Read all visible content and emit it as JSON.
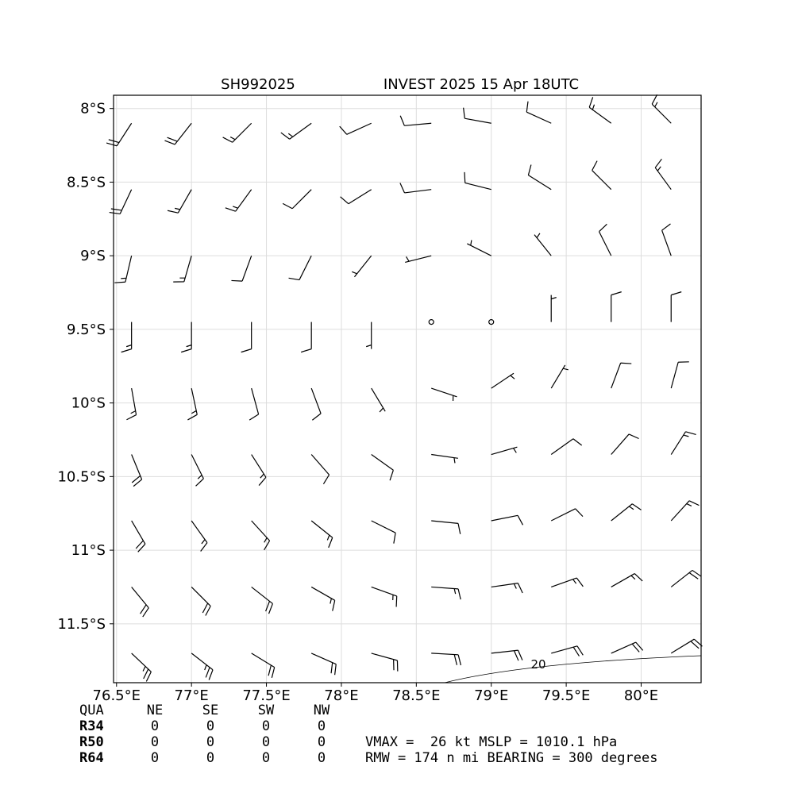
{
  "map": {
    "title_left": "SH992025",
    "title_right": "INVEST 2025 15 Apr 18UTC",
    "xlim": [
      76.48,
      80.4
    ],
    "ylim": [
      -11.9,
      -7.91
    ],
    "xticks": [
      {
        "value": 76.5,
        "label": "76.5°E"
      },
      {
        "value": 77,
        "label": "77°E"
      },
      {
        "value": 77.5,
        "label": "77.5°E"
      },
      {
        "value": 78,
        "label": "78°E"
      },
      {
        "value": 78.5,
        "label": "78.5°E"
      },
      {
        "value": 79,
        "label": "79°E"
      },
      {
        "value": 79.5,
        "label": "79.5°E"
      },
      {
        "value": 80,
        "label": "80°E"
      }
    ],
    "yticks": [
      {
        "value": -8,
        "label": "8°S"
      },
      {
        "value": -8.5,
        "label": "8.5°S"
      },
      {
        "value": -9,
        "label": "9°S"
      },
      {
        "value": -9.5,
        "label": "9.5°S"
      },
      {
        "value": -10,
        "label": "10°S"
      },
      {
        "value": -10.5,
        "label": "10.5°S"
      },
      {
        "value": -11,
        "label": "11°S"
      },
      {
        "value": -11.5,
        "label": "11.5°S"
      }
    ],
    "lons": [
      76.6,
      77.0,
      77.4,
      77.8,
      78.2,
      78.6,
      79.0,
      79.4,
      79.8,
      80.2
    ],
    "lats": [
      -8.1,
      -8.55,
      -9.0,
      -9.45,
      -9.9,
      -10.35,
      -10.8,
      -11.25,
      -11.7
    ],
    "u": [
      [
        11,
        11,
        11,
        11,
        11,
        11,
        11,
        11,
        11,
        11
      ],
      [
        8,
        8,
        8,
        8,
        8,
        8,
        8,
        8,
        8,
        8
      ],
      [
        4,
        4,
        4,
        4,
        4,
        4,
        4,
        4,
        4,
        4
      ],
      [
        0,
        0,
        0,
        0,
        0,
        0,
        0,
        0,
        0,
        0
      ],
      [
        -3,
        -3,
        -3,
        -3,
        -3,
        -3,
        -3,
        -3,
        -3,
        -3
      ],
      [
        -7,
        -7,
        -7,
        -7,
        -7,
        -7,
        -7,
        -7,
        -7,
        -7
      ],
      [
        -10,
        -10,
        -10,
        -10,
        -10,
        -10,
        -10,
        -10,
        -10,
        -10
      ],
      [
        -14,
        -14,
        -14,
        -14,
        -14,
        -14,
        -14,
        -14,
        -14,
        -14
      ],
      [
        -18,
        -18,
        -18,
        -18,
        -18,
        -18,
        -18,
        -18,
        -18,
        -18
      ]
    ],
    "v": [
      [
        17,
        14,
        11,
        8,
        5,
        1,
        -2,
        -5,
        -8,
        -11
      ],
      [
        17,
        14,
        11,
        8,
        5,
        1,
        -2,
        -5,
        -8,
        -11
      ],
      [
        17,
        14,
        11,
        8,
        5,
        1,
        -2,
        -5,
        -8,
        -11
      ],
      [
        17,
        14,
        11,
        8,
        5,
        1,
        -2,
        -5,
        -8,
        -11
      ],
      [
        17,
        14,
        11,
        8,
        5,
        1,
        -2,
        -5,
        -8,
        -11
      ],
      [
        17,
        14,
        11,
        8,
        5,
        1,
        -2,
        -5,
        -8,
        -11
      ],
      [
        17,
        14,
        11,
        8,
        5,
        1,
        -2,
        -5,
        -8,
        -11
      ],
      [
        17,
        14,
        11,
        8,
        5,
        1,
        -2,
        -5,
        -8,
        -11
      ],
      [
        17,
        14,
        11,
        8,
        5,
        1,
        -2,
        -5,
        -8,
        -11
      ]
    ],
    "contour_label": "20",
    "table": {
      "header": [
        "QUA",
        "NE",
        "SE",
        "SW",
        "NW"
      ],
      "rows": [
        [
          "R34",
          0,
          0,
          0,
          0
        ],
        [
          "R50",
          0,
          0,
          0,
          0
        ],
        [
          "R64",
          0,
          0,
          0,
          0
        ]
      ]
    },
    "info": [
      "VMAX =  26 kt MSLP = 1010.1 hPa",
      "RMW = 174 n mi BEARING = 300 degrees"
    ]
  }
}
